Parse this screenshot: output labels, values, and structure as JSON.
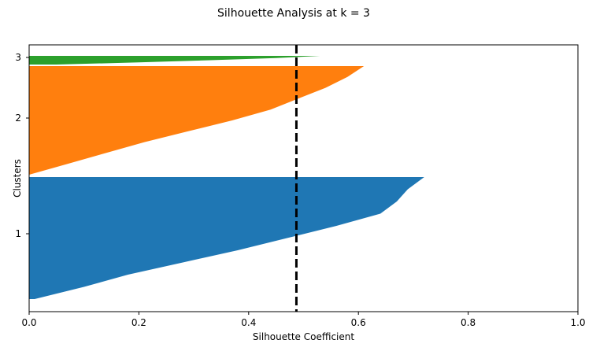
{
  "chart_data": {
    "type": "area",
    "title": "Silhouette Analysis at k = 3",
    "xlabel": "Silhouette Coefficient",
    "ylabel": "Clusters",
    "xlim": [
      0.0,
      1.0
    ],
    "xticks": [
      "0.0",
      "0.2",
      "0.4",
      "0.6",
      "0.8",
      "1.0"
    ],
    "yticks": [
      "1",
      "2",
      "3"
    ],
    "grid": false,
    "legend": "none",
    "clusters": [
      {
        "label": "1",
        "color": "#1f77b4",
        "max_silhouette": 0.72,
        "min_silhouette": 0.01,
        "profile": [
          [
            0.0,
            0.72
          ],
          [
            0.1,
            0.69
          ],
          [
            0.2,
            0.67
          ],
          [
            0.3,
            0.64
          ],
          [
            0.4,
            0.56
          ],
          [
            0.5,
            0.47
          ],
          [
            0.6,
            0.38
          ],
          [
            0.7,
            0.28
          ],
          [
            0.8,
            0.18
          ],
          [
            0.9,
            0.1
          ],
          [
            1.0,
            0.01
          ]
        ]
      },
      {
        "label": "2",
        "color": "#ff7f0e",
        "max_silhouette": 0.61,
        "min_silhouette": 0.0,
        "profile": [
          [
            0.0,
            0.61
          ],
          [
            0.1,
            0.58
          ],
          [
            0.2,
            0.54
          ],
          [
            0.3,
            0.49
          ],
          [
            0.4,
            0.44
          ],
          [
            0.5,
            0.37
          ],
          [
            0.6,
            0.29
          ],
          [
            0.7,
            0.21
          ],
          [
            0.8,
            0.14
          ],
          [
            0.9,
            0.07
          ],
          [
            1.0,
            0.0
          ]
        ]
      },
      {
        "label": "3",
        "color": "#2ca02c",
        "max_silhouette": 0.53,
        "min_silhouette": 0.05,
        "profile": [
          [
            0.0,
            0.53
          ],
          [
            0.25,
            0.45
          ],
          [
            0.5,
            0.33
          ],
          [
            0.75,
            0.2
          ],
          [
            1.0,
            0.05
          ]
        ]
      }
    ],
    "average_silhouette": 0.487,
    "average_line": {
      "color": "#000000",
      "style": "dashed"
    }
  }
}
